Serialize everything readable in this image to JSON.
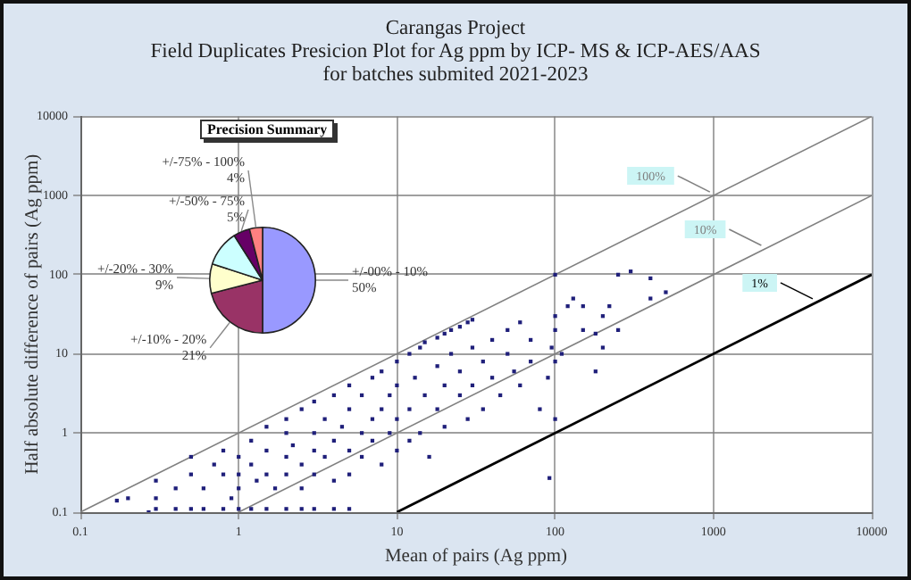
{
  "chart_data": [
    {
      "type": "scatter",
      "title": "Carangas Project",
      "subtitle": "Field Duplicates Presicion Plot for Ag ppm by ICP- MS & ICP-AES/AAS\nfor batches submited 2021-2023",
      "xlabel": "Mean of pairs (Ag ppm)",
      "ylabel": "Half absolute difference of pairs (Ag ppm)",
      "log": "xy",
      "grid": true,
      "legend": "top right",
      "xlim": [
        0.1,
        10000
      ],
      "xticks": [
        0.1,
        1,
        10,
        100,
        1000,
        10000
      ],
      "ylim": [
        0.1,
        10000
      ],
      "yticks": [
        0.1,
        1,
        10,
        100,
        1000,
        10000
      ],
      "series": [
        {
          "type": "scatter",
          "marker": "square",
          "color": "#1f1f7a",
          "x": [
            0.17,
            0.27,
            0.3,
            0.4,
            0.5,
            0.6,
            0.8,
            1.0,
            1.2,
            1.5,
            2,
            2.5,
            3,
            4,
            5,
            0.2,
            0.3,
            0.3,
            0.4,
            0.5,
            0.5,
            0.6,
            0.7,
            0.8,
            0.8,
            0.9,
            1,
            1,
            1,
            1.2,
            1.2,
            1.3,
            1.5,
            1.5,
            1.5,
            1.7,
            2,
            2,
            2,
            2,
            2.2,
            2.5,
            2.5,
            2.5,
            3,
            3,
            3,
            3,
            3.5,
            3.5,
            4,
            4,
            4,
            4.5,
            5,
            5,
            5,
            5,
            6,
            6,
            6,
            7,
            7,
            7,
            8,
            8,
            8,
            9,
            9,
            10,
            10,
            10,
            10,
            12,
            12,
            12,
            13,
            14,
            14,
            15,
            15,
            16,
            18,
            18,
            18,
            20,
            20,
            20,
            22,
            22,
            25,
            25,
            25,
            28,
            28,
            30,
            30,
            30,
            35,
            35,
            40,
            40,
            45,
            50,
            50,
            55,
            60,
            60,
            70,
            70,
            80,
            90,
            95,
            92,
            100,
            100,
            100,
            100,
            100,
            110,
            120,
            130,
            150,
            150,
            180,
            180,
            200,
            200,
            250,
            300,
            400,
            400,
            500,
            250,
            220
          ],
          "values": [
            0.14,
            0.1,
            0.11,
            0.11,
            0.11,
            0.11,
            0.11,
            0.11,
            0.11,
            0.11,
            0.11,
            0.11,
            0.11,
            0.11,
            0.11,
            0.15,
            0.25,
            0.15,
            0.2,
            0.3,
            0.5,
            0.2,
            0.4,
            0.3,
            0.6,
            0.15,
            0.5,
            0.3,
            0.2,
            0.8,
            0.4,
            0.25,
            0.6,
            1.2,
            0.3,
            0.2,
            0.5,
            1,
            0.3,
            1.5,
            0.7,
            0.4,
            2,
            0.2,
            0.6,
            1,
            2.5,
            0.3,
            0.5,
            1.5,
            0.8,
            3,
            0.25,
            1.2,
            0.6,
            2,
            4,
            0.3,
            1,
            0.5,
            3,
            1.5,
            0.8,
            5,
            0.4,
            2,
            6,
            1,
            3,
            0.6,
            1.5,
            8,
            4,
            2,
            10,
            0.8,
            5,
            1,
            12,
            3,
            14,
            0.5,
            16,
            2,
            7,
            18,
            4,
            1.2,
            10,
            20,
            22,
            3,
            6,
            25,
            1.5,
            12,
            27,
            4,
            8,
            2,
            15,
            5,
            3,
            10,
            20,
            6,
            4,
            25,
            8,
            15,
            2,
            5,
            12,
            0.27,
            100,
            30,
            20,
            8,
            1.5,
            10,
            40,
            50,
            20,
            40,
            18,
            6,
            30,
            12,
            100,
            110,
            90,
            50,
            60,
            20,
            40
          ]
        },
        {
          "type": "line",
          "marker": "none",
          "name": "100%",
          "color": "#808080",
          "x": [
            0.1,
            10000
          ],
          "values": [
            0.1,
            10000
          ]
        },
        {
          "type": "line",
          "marker": "none",
          "name": "10%",
          "color": "#808080",
          "x": [
            1,
            10000
          ],
          "values": [
            0.1,
            1000
          ]
        },
        {
          "type": "line",
          "marker": "none",
          "name": "1%",
          "color": "#000000",
          "x": [
            10,
            10000
          ],
          "values": [
            0.1,
            100
          ]
        }
      ]
    },
    {
      "type": "pie",
      "title": "Precision Summary",
      "categories": [
        "+/-00% - 10%",
        "+/-10% - 20%",
        "+/-20% - 30%",
        null,
        "+/-50% - 75%",
        "+/-75% - 100%"
      ],
      "values": [
        50,
        21,
        9,
        11,
        5,
        4
      ],
      "value_labels": [
        "50%",
        "21%",
        "9%",
        null,
        "5%",
        "4%"
      ],
      "colors": [
        "#9999ff",
        "#993366",
        "#ffffcc",
        "#ccffff",
        "#660066",
        "#ff8080"
      ]
    }
  ]
}
